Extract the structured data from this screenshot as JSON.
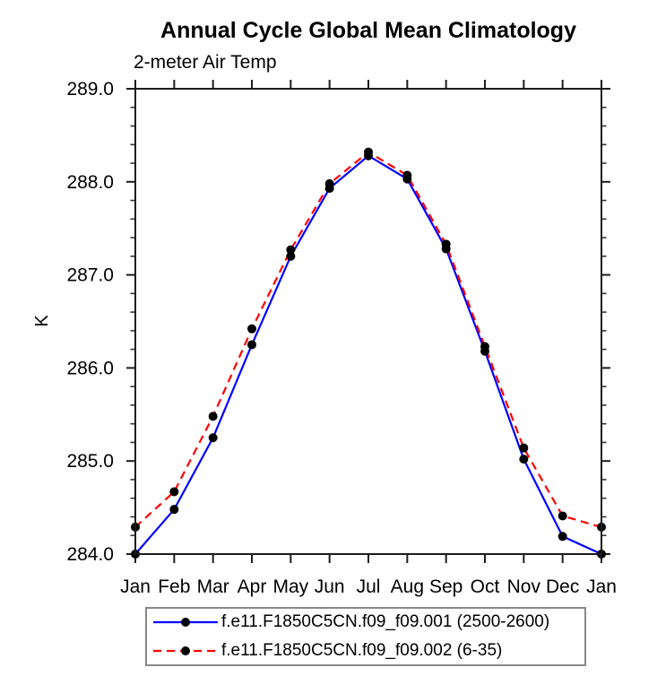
{
  "chart_data": {
    "type": "line",
    "title": "Annual Cycle Global Mean Climatology",
    "subtitle": "2-meter Air Temp",
    "ylabel": "K",
    "xlabel": "",
    "categories": [
      "Jan",
      "Feb",
      "Mar",
      "Apr",
      "May",
      "Jun",
      "Jul",
      "Aug",
      "Sep",
      "Oct",
      "Nov",
      "Dec",
      "Jan"
    ],
    "ylim": [
      284.0,
      289.0
    ],
    "ytick_labels": [
      "284.0",
      "285.0",
      "286.0",
      "287.0",
      "288.0",
      "289.0"
    ],
    "ytick_major_interval": 1.0,
    "ytick_minor_interval": 0.2,
    "grid": false,
    "legend_position": "bottom",
    "frame_color": "#1c1c1c",
    "marker": "filled-circle",
    "marker_color": "#000000",
    "series": [
      {
        "name": "f.e11.F1850C5CN.f09_f09.001 (2500-2600)",
        "color": "#0000ff",
        "style": "solid",
        "values": [
          284.0,
          284.48,
          285.25,
          286.25,
          287.2,
          287.93,
          288.28,
          288.03,
          287.28,
          286.18,
          285.02,
          284.19,
          284.0
        ]
      },
      {
        "name": "f.e11.F1850C5CN.f09_f09.002 (6-35)",
        "color": "#ff0000",
        "style": "dashed",
        "values": [
          284.29,
          284.67,
          285.48,
          286.42,
          287.27,
          287.98,
          288.32,
          288.07,
          287.33,
          286.23,
          285.14,
          284.41,
          284.29
        ]
      }
    ]
  }
}
